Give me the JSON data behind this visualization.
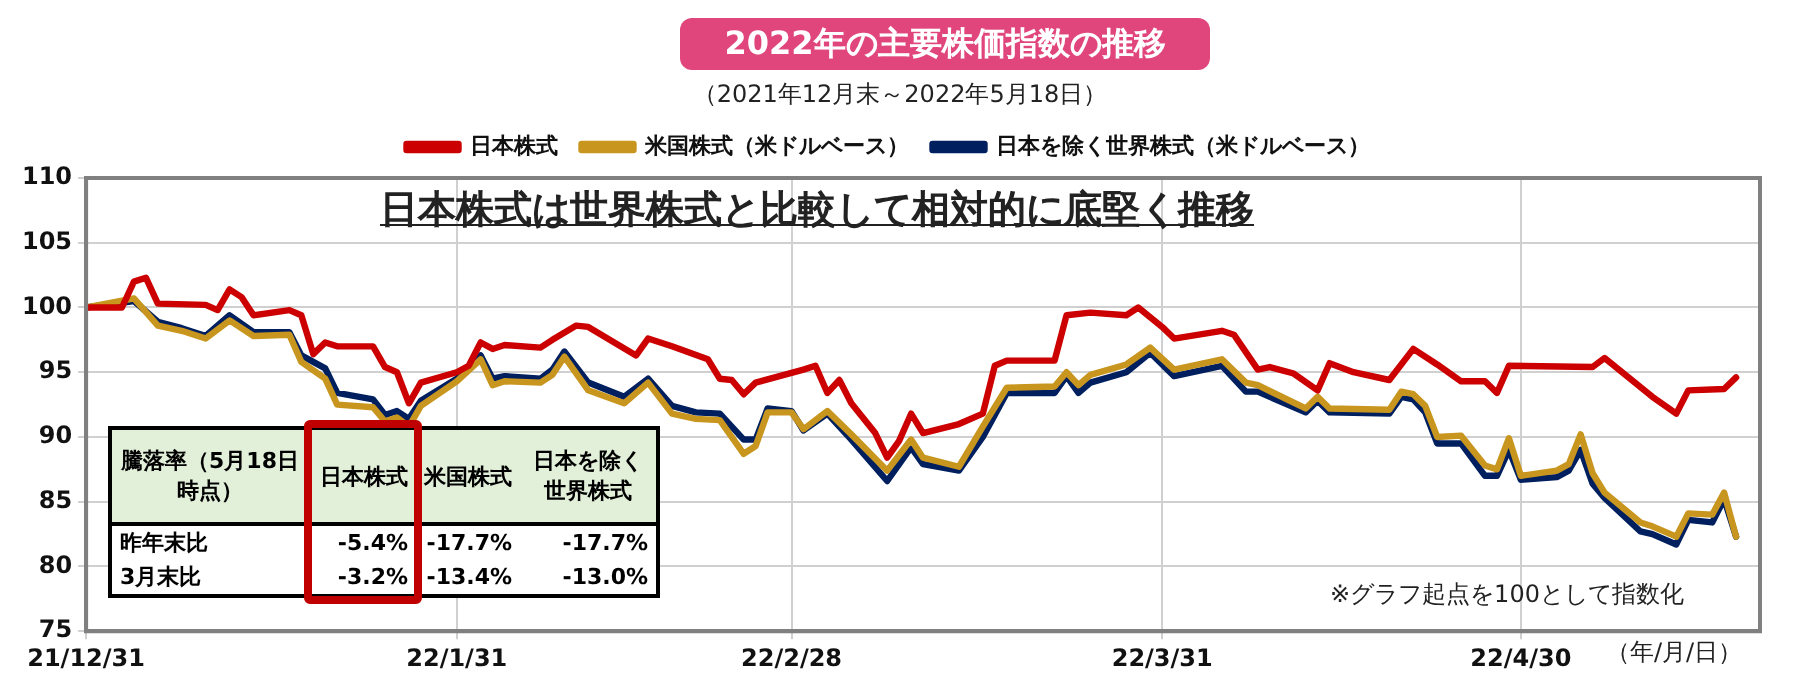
{
  "chart_data": {
    "type": "line",
    "title": "2022年の主要株価指数の推移",
    "subtitle": "（2021年12月末～2022年5月18日）",
    "xlim": [
      "2021-12-31",
      "2022-05-20"
    ],
    "xticks": [
      {
        "value": "2021-12-31",
        "label": "21/12/31"
      },
      {
        "value": "2022-01-31",
        "label": "22/1/31"
      },
      {
        "value": "2022-02-28",
        "label": "22/2/28"
      },
      {
        "value": "2022-03-31",
        "label": "22/3/31"
      },
      {
        "value": "2022-04-30",
        "label": "22/4/30"
      }
    ],
    "ylim": [
      75,
      110
    ],
    "yticks": [
      75,
      80,
      85,
      90,
      95,
      100,
      105,
      110
    ],
    "grid": true,
    "legend": "top",
    "marker": "none",
    "line_style": "solid",
    "annotations": [
      "日本株式は世界株式と比較して相対的に底堅く推移",
      "※グラフ起点を100として指数化",
      "（年/月/日）",
      "騰落率（5月18日時点）",
      "日本株式",
      "米国株式",
      "日本を除く世界株式",
      "昨年末比",
      "-5.4%",
      "-17.7%",
      "-17.7%",
      "3月末比",
      "-3.2%",
      "-13.4%",
      "-13.0%"
    ],
    "series": [
      {
        "name": "日本株式",
        "color": "#cc0000",
        "x": [
          "2021-12-31",
          "2022-01-03",
          "2022-01-04",
          "2022-01-05",
          "2022-01-06",
          "2022-01-10",
          "2022-01-11",
          "2022-01-12",
          "2022-01-13",
          "2022-01-14",
          "2022-01-17",
          "2022-01-18",
          "2022-01-19",
          "2022-01-20",
          "2022-01-21",
          "2022-01-24",
          "2022-01-25",
          "2022-01-26",
          "2022-01-27",
          "2022-01-28",
          "2022-01-31",
          "2022-02-01",
          "2022-02-02",
          "2022-02-03",
          "2022-02-04",
          "2022-02-07",
          "2022-02-08",
          "2022-02-10",
          "2022-02-11",
          "2022-02-15",
          "2022-02-16",
          "2022-02-18",
          "2022-02-21",
          "2022-02-22",
          "2022-02-23",
          "2022-02-24",
          "2022-02-25",
          "2022-03-01",
          "2022-03-02",
          "2022-03-03",
          "2022-03-04",
          "2022-03-05",
          "2022-03-07",
          "2022-03-08",
          "2022-03-09",
          "2022-03-10",
          "2022-03-11",
          "2022-03-14",
          "2022-03-16",
          "2022-03-17",
          "2022-03-18",
          "2022-03-22",
          "2022-03-23",
          "2022-03-25",
          "2022-03-28",
          "2022-03-29",
          "2022-03-31",
          "2022-04-01",
          "2022-04-05",
          "2022-04-06",
          "2022-04-08",
          "2022-04-09",
          "2022-04-11",
          "2022-04-13",
          "2022-04-14",
          "2022-04-16",
          "2022-04-19",
          "2022-04-21",
          "2022-04-23",
          "2022-04-25",
          "2022-04-27",
          "2022-04-28",
          "2022-04-29",
          "2022-05-06",
          "2022-05-07",
          "2022-05-11",
          "2022-05-13",
          "2022-05-14",
          "2022-05-17",
          "2022-05-18"
        ],
        "values": [
          100.0,
          100.0,
          102.0,
          102.3,
          100.3,
          100.2,
          99.8,
          101.4,
          100.8,
          99.4,
          99.8,
          99.4,
          96.4,
          97.3,
          97.0,
          97.0,
          95.4,
          95.0,
          92.6,
          94.2,
          95.0,
          95.5,
          97.3,
          96.8,
          97.1,
          96.9,
          97.5,
          98.6,
          98.5,
          96.3,
          97.6,
          97.0,
          96.0,
          94.5,
          94.4,
          93.3,
          94.2,
          95.2,
          95.5,
          93.4,
          94.4,
          92.6,
          90.3,
          88.4,
          89.7,
          91.8,
          90.3,
          91.0,
          91.8,
          95.5,
          95.9,
          95.9,
          99.4,
          99.6,
          99.4,
          100.0,
          98.5,
          97.6,
          98.2,
          97.9,
          95.2,
          95.4,
          94.9,
          93.6,
          95.7,
          95.0,
          94.4,
          96.8,
          95.6,
          94.3,
          94.3,
          93.4,
          95.5,
          95.4,
          96.1,
          93.1,
          91.8,
          93.6,
          93.7,
          94.6
        ]
      },
      {
        "name": "米国株式（米ドルベース）",
        "color": "#c8961e",
        "x": [
          "2021-12-31",
          "2022-01-04",
          "2022-01-06",
          "2022-01-08",
          "2022-01-10",
          "2022-01-12",
          "2022-01-14",
          "2022-01-17",
          "2022-01-18",
          "2022-01-20",
          "2022-01-21",
          "2022-01-24",
          "2022-01-25",
          "2022-01-26",
          "2022-01-27",
          "2022-01-28",
          "2022-01-31",
          "2022-02-02",
          "2022-02-03",
          "2022-02-04",
          "2022-02-07",
          "2022-02-08",
          "2022-02-09",
          "2022-02-11",
          "2022-02-14",
          "2022-02-16",
          "2022-02-18",
          "2022-02-20",
          "2022-02-22",
          "2022-02-24",
          "2022-02-25",
          "2022-02-26",
          "2022-02-28",
          "2022-03-01",
          "2022-03-03",
          "2022-03-05",
          "2022-03-08",
          "2022-03-10",
          "2022-03-11",
          "2022-03-14",
          "2022-03-16",
          "2022-03-18",
          "2022-03-22",
          "2022-03-23",
          "2022-03-24",
          "2022-03-25",
          "2022-03-28",
          "2022-03-30",
          "2022-04-01",
          "2022-04-05",
          "2022-04-07",
          "2022-04-08",
          "2022-04-12",
          "2022-04-13",
          "2022-04-14",
          "2022-04-19",
          "2022-04-20",
          "2022-04-21",
          "2022-04-22",
          "2022-04-23",
          "2022-04-25",
          "2022-04-27",
          "2022-04-28",
          "2022-04-29",
          "2022-04-30",
          "2022-05-03",
          "2022-05-04",
          "2022-05-05",
          "2022-05-06",
          "2022-05-07",
          "2022-05-10",
          "2022-05-11",
          "2022-05-13",
          "2022-05-14",
          "2022-05-16",
          "2022-05-17",
          "2022-05-18"
        ],
        "values": [
          100.0,
          100.7,
          98.6,
          98.2,
          97.6,
          99.0,
          97.8,
          97.9,
          95.8,
          94.5,
          92.5,
          92.3,
          91.2,
          91.5,
          90.8,
          92.4,
          94.3,
          96.0,
          94.0,
          94.3,
          94.2,
          94.8,
          96.2,
          93.6,
          92.6,
          94.2,
          91.8,
          91.4,
          91.3,
          88.7,
          89.3,
          91.9,
          91.9,
          90.6,
          92.0,
          90.2,
          87.4,
          89.8,
          88.4,
          87.7,
          90.8,
          93.8,
          93.9,
          95.0,
          94.0,
          94.8,
          95.6,
          96.9,
          95.2,
          96.0,
          94.2,
          94.0,
          92.2,
          93.1,
          92.2,
          92.1,
          93.5,
          93.3,
          92.4,
          90.0,
          90.1,
          87.8,
          87.5,
          89.9,
          87.0,
          87.4,
          87.9,
          90.2,
          87.2,
          85.7,
          83.4,
          83.1,
          82.3,
          84.1,
          84.0,
          85.7,
          82.3
        ]
      },
      {
        "name": "日本を除く世界株式（米ドルベース）",
        "color": "#001f5f",
        "x": [
          "2021-12-31",
          "2022-01-04",
          "2022-01-06",
          "2022-01-08",
          "2022-01-10",
          "2022-01-12",
          "2022-01-14",
          "2022-01-17",
          "2022-01-18",
          "2022-01-20",
          "2022-01-21",
          "2022-01-24",
          "2022-01-25",
          "2022-01-26",
          "2022-01-27",
          "2022-01-28",
          "2022-01-31",
          "2022-02-02",
          "2022-02-03",
          "2022-02-04",
          "2022-02-07",
          "2022-02-08",
          "2022-02-09",
          "2022-02-11",
          "2022-02-14",
          "2022-02-16",
          "2022-02-18",
          "2022-02-20",
          "2022-02-22",
          "2022-02-24",
          "2022-02-25",
          "2022-02-26",
          "2022-02-28",
          "2022-03-01",
          "2022-03-03",
          "2022-03-05",
          "2022-03-08",
          "2022-03-10",
          "2022-03-11",
          "2022-03-14",
          "2022-03-16",
          "2022-03-18",
          "2022-03-22",
          "2022-03-23",
          "2022-03-24",
          "2022-03-25",
          "2022-03-28",
          "2022-03-30",
          "2022-04-01",
          "2022-04-05",
          "2022-04-07",
          "2022-04-08",
          "2022-04-12",
          "2022-04-13",
          "2022-04-14",
          "2022-04-19",
          "2022-04-20",
          "2022-04-21",
          "2022-04-22",
          "2022-04-23",
          "2022-04-25",
          "2022-04-27",
          "2022-04-28",
          "2022-04-29",
          "2022-04-30",
          "2022-05-03",
          "2022-05-04",
          "2022-05-05",
          "2022-05-06",
          "2022-05-07",
          "2022-05-10",
          "2022-05-11",
          "2022-05-13",
          "2022-05-14",
          "2022-05-16",
          "2022-05-17",
          "2022-05-18"
        ],
        "values": [
          100.0,
          100.5,
          98.9,
          98.4,
          97.8,
          99.4,
          98.1,
          98.1,
          96.3,
          95.3,
          93.4,
          92.9,
          91.7,
          92.0,
          91.4,
          92.8,
          94.5,
          96.3,
          94.5,
          94.7,
          94.5,
          95.2,
          96.6,
          94.2,
          93.1,
          94.5,
          92.4,
          91.9,
          91.8,
          89.8,
          89.8,
          92.2,
          92.0,
          90.5,
          91.8,
          89.8,
          86.6,
          89.2,
          87.9,
          87.4,
          90.0,
          93.4,
          93.4,
          94.7,
          93.4,
          94.2,
          95.0,
          96.5,
          94.7,
          95.5,
          93.5,
          93.5,
          91.9,
          92.8,
          91.9,
          91.8,
          93.1,
          92.9,
          91.9,
          89.5,
          89.5,
          87.0,
          87.0,
          89.0,
          86.7,
          86.9,
          87.4,
          89.0,
          86.4,
          85.3,
          82.7,
          82.5,
          81.7,
          83.6,
          83.4,
          85.2,
          82.3
        ]
      }
    ]
  }
}
